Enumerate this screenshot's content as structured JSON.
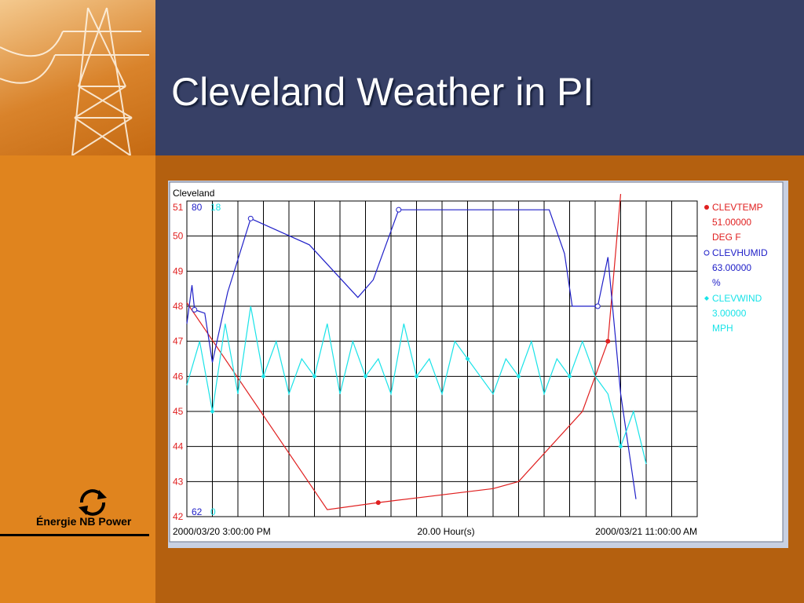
{
  "slide": {
    "title": "Cleveland Weather in PI",
    "brand_text": "Énergie NB Power",
    "colors": {
      "header_bg": "#374066",
      "left_bar": "#e0841e",
      "right_bar": "#b4600f",
      "temp": "#e02020",
      "humid": "#2020c8",
      "wind": "#19e3e8"
    }
  },
  "trend": {
    "name": "Cleveland",
    "start_time": "2000/03/20 3:00:00 PM",
    "span": "20.00 Hour(s)",
    "end_time": "2000/03/21 11:00:00 AM"
  },
  "chart_data": {
    "type": "line",
    "title": "Cleveland",
    "x_start": "2000/03/20 3:00:00 PM",
    "x_end": "2000/03/21 11:00:00 AM",
    "x_span_hours": 20,
    "grid": true,
    "legend_position": "right",
    "axes": [
      {
        "series": "CLEVTEMP",
        "min": 42,
        "max": 51,
        "ticks": [
          "51",
          "50",
          "49",
          "48",
          "47",
          "46",
          "45",
          "44",
          "43",
          "42"
        ]
      },
      {
        "series": "CLEVHUMID",
        "min": 62,
        "max": 80,
        "ticks": [
          "80",
          "62"
        ]
      },
      {
        "series": "CLEVWIND",
        "min": 0,
        "max": 18,
        "ticks": [
          "18",
          "0"
        ]
      }
    ],
    "series": [
      {
        "name": "CLEVTEMP",
        "value": "51.00000",
        "unit": "DEG F",
        "axis": 0,
        "marker": "filled-dot",
        "points": [
          [
            0,
            48.1
          ],
          [
            5.5,
            42.2
          ],
          [
            7.5,
            42.4
          ],
          [
            12,
            42.8
          ],
          [
            13,
            43
          ],
          [
            15.5,
            45
          ],
          [
            16.5,
            47
          ],
          [
            17,
            51.2
          ]
        ]
      },
      {
        "name": "CLEVHUMID",
        "value": "63.00000",
        "unit": "%",
        "axis": 1,
        "marker": "open-circle",
        "points": [
          [
            0,
            73
          ],
          [
            0.2,
            75.2
          ],
          [
            0.3,
            73.8
          ],
          [
            0.7,
            73.6
          ],
          [
            1,
            70.8
          ],
          [
            1.6,
            74.8
          ],
          [
            2.5,
            79
          ],
          [
            4.8,
            77.5
          ],
          [
            6.7,
            74.5
          ],
          [
            7.3,
            75.5
          ],
          [
            8.3,
            79.5
          ],
          [
            14.2,
            79.5
          ],
          [
            14.8,
            77
          ],
          [
            15.1,
            74
          ],
          [
            16.1,
            74
          ],
          [
            16.5,
            76.8
          ],
          [
            17,
            69
          ],
          [
            17.6,
            63
          ]
        ]
      },
      {
        "name": "CLEVWIND",
        "value": "3.00000",
        "unit": "MPH",
        "axis": 2,
        "marker": "filled-diamond",
        "points": [
          [
            0,
            7.5
          ],
          [
            0.5,
            10
          ],
          [
            1,
            6
          ],
          [
            1.5,
            11
          ],
          [
            2,
            7
          ],
          [
            2.5,
            12
          ],
          [
            3,
            8
          ],
          [
            3.5,
            10
          ],
          [
            4,
            7
          ],
          [
            4.5,
            9
          ],
          [
            5,
            8
          ],
          [
            5.5,
            11
          ],
          [
            6,
            7
          ],
          [
            6.5,
            10
          ],
          [
            7,
            8
          ],
          [
            7.5,
            9
          ],
          [
            8,
            7
          ],
          [
            8.5,
            11
          ],
          [
            9,
            8
          ],
          [
            9.5,
            9
          ],
          [
            10,
            7
          ],
          [
            10.5,
            10
          ],
          [
            11,
            9
          ],
          [
            11.5,
            8
          ],
          [
            12,
            7
          ],
          [
            12.5,
            9
          ],
          [
            13,
            8
          ],
          [
            13.5,
            10
          ],
          [
            14,
            7
          ],
          [
            14.5,
            9
          ],
          [
            15,
            8
          ],
          [
            15.5,
            10
          ],
          [
            16,
            8
          ],
          [
            16.5,
            7
          ],
          [
            17,
            4
          ],
          [
            17.5,
            6
          ],
          [
            18,
            3
          ]
        ]
      }
    ]
  }
}
